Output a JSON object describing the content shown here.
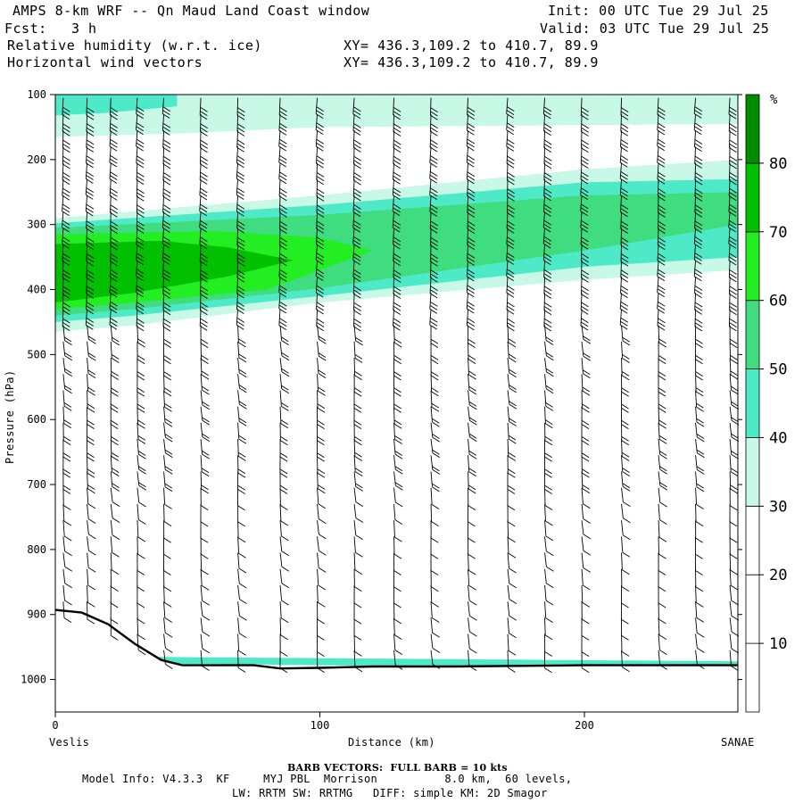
{
  "header": {
    "title": "AMPS 8-km WRF -- Qn Maud Land Coast window",
    "fcst_label": "Fcst:",
    "fcst_value": "3 h",
    "field1": "Relative humidity (w.r.t. ice)",
    "field2": "Horizontal wind vectors",
    "init": "Init: 00 UTC Tue 29 Jul 25",
    "valid": "Valid: 03 UTC Tue 29 Jul 25",
    "xy1": "XY= 436.3,109.2 to 410.7, 89.9",
    "xy2": "XY= 436.3,109.2 to 410.7, 89.9"
  },
  "footer": {
    "barb_note": "BARB VECTORS:  FULL BARB = 10 kts",
    "model_info": "Model Info: V4.3.3  KF     MYJ PBL  Morrison          8.0 km,  60 levels,",
    "model_info2": "LW: RRTM SW: RRTMG   DIFF: simple KM: 2D Smagor"
  },
  "chart_data": {
    "type": "cross-section",
    "title": "Relative humidity (w.r.t. ice)",
    "xlabel": "Distance (km)",
    "ylabel": "Pressure (hPa)",
    "x_start_label": "Veslis",
    "x_end_label": "SANAE",
    "xlim": [
      0,
      258
    ],
    "ylim": [
      1050,
      100
    ],
    "x_ticks": [
      0,
      100,
      200
    ],
    "y_ticks": [
      100,
      200,
      300,
      400,
      500,
      600,
      700,
      800,
      900,
      1000
    ],
    "colorbar": {
      "unit": "%",
      "levels": [
        10,
        20,
        30,
        40,
        50,
        60,
        70,
        80
      ],
      "colors": [
        "#ffffff",
        "#ffffff",
        "#ffffff",
        "#c8f8e6",
        "#4eeac8",
        "#40dd80",
        "#22ee22",
        "#00c000",
        "#008c00"
      ]
    },
    "rh_bands": [
      {
        "rh_min": 30,
        "top_hpa": [
          [
            0,
            100
          ],
          [
            46,
            100
          ],
          [
            100,
            100
          ],
          [
            258,
            100
          ]
        ],
        "bottom_hpa": [
          [
            0,
            165
          ],
          [
            46,
            160
          ],
          [
            100,
            150
          ],
          [
            258,
            145
          ]
        ]
      },
      {
        "rh_min": 40,
        "top_hpa": [
          [
            0,
            100
          ],
          [
            46,
            100
          ]
        ],
        "bottom_hpa": [
          [
            0,
            132
          ],
          [
            20,
            128
          ],
          [
            46,
            118
          ]
        ]
      },
      {
        "rh_min": 30,
        "top_hpa": [
          [
            0,
            290
          ],
          [
            100,
            255
          ],
          [
            200,
            215
          ],
          [
            258,
            200
          ]
        ],
        "bottom_hpa": [
          [
            0,
            465
          ],
          [
            30,
            455
          ],
          [
            100,
            420
          ],
          [
            200,
            385
          ],
          [
            258,
            370
          ]
        ]
      },
      {
        "rh_min": 40,
        "top_hpa": [
          [
            0,
            298
          ],
          [
            100,
            270
          ],
          [
            200,
            235
          ],
          [
            258,
            230
          ]
        ],
        "bottom_hpa": [
          [
            0,
            450
          ],
          [
            30,
            440
          ],
          [
            100,
            410
          ],
          [
            200,
            365
          ],
          [
            258,
            350
          ]
        ]
      },
      {
        "rh_min": 50,
        "top_hpa": [
          [
            0,
            305
          ],
          [
            100,
            285
          ],
          [
            200,
            255
          ],
          [
            258,
            250
          ]
        ],
        "bottom_hpa": [
          [
            0,
            440
          ],
          [
            30,
            430
          ],
          [
            100,
            398
          ],
          [
            200,
            340
          ],
          [
            258,
            300
          ]
        ]
      },
      {
        "rh_min": 60,
        "top_hpa": [
          [
            0,
            315
          ],
          [
            60,
            310
          ],
          [
            100,
            320
          ],
          [
            120,
            340
          ]
        ],
        "bottom_hpa": [
          [
            0,
            430
          ],
          [
            30,
            420
          ],
          [
            80,
            400
          ],
          [
            120,
            340
          ]
        ]
      },
      {
        "rh_min": 70,
        "top_hpa": [
          [
            0,
            330
          ],
          [
            40,
            325
          ],
          [
            65,
            335
          ],
          [
            90,
            355
          ]
        ],
        "bottom_hpa": [
          [
            0,
            420
          ],
          [
            30,
            405
          ],
          [
            65,
            380
          ],
          [
            90,
            355
          ]
        ]
      },
      {
        "rh_min": 40,
        "top_hpa": [
          [
            30,
            965
          ],
          [
            258,
            972
          ]
        ],
        "bottom_hpa": [
          [
            30,
            975
          ],
          [
            258,
            985
          ]
        ]
      }
    ],
    "terrain_hpa": [
      [
        0,
        893
      ],
      [
        10,
        897
      ],
      [
        20,
        915
      ],
      [
        30,
        945
      ],
      [
        40,
        970
      ],
      [
        48,
        978
      ],
      [
        60,
        978
      ],
      [
        75,
        978
      ],
      [
        85,
        983
      ],
      [
        100,
        982
      ],
      [
        120,
        980
      ],
      [
        150,
        980
      ],
      [
        200,
        978
      ],
      [
        258,
        978
      ]
    ],
    "barb_columns_km": [
      3,
      12,
      21,
      31,
      41,
      55,
      69,
      85,
      99,
      113,
      128,
      142,
      156,
      171,
      185,
      199,
      214,
      228,
      242,
      255
    ],
    "barb_levels_hpa": [
      105,
      130,
      155,
      180,
      205,
      230,
      255,
      280,
      305,
      330,
      355,
      380,
      405,
      430,
      455,
      480,
      505,
      530,
      555,
      580,
      605,
      630,
      655,
      680,
      705,
      730,
      755,
      780,
      805,
      830,
      855,
      880,
      905,
      930,
      955,
      980
    ]
  }
}
